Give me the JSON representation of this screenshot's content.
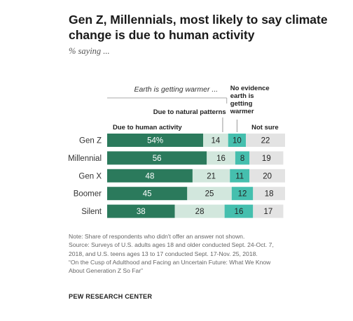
{
  "title": "Gen Z, Millennials, most likely to say climate change is due to human activity",
  "subtitle": "% saying ...",
  "chart_data": {
    "type": "bar",
    "orientation": "horizontal",
    "stacked": true,
    "categories": [
      "Gen Z",
      "Millennial",
      "Gen X",
      "Boomer",
      "Silent"
    ],
    "series": [
      {
        "name": "Due to human activity",
        "values": [
          54,
          56,
          48,
          45,
          38
        ],
        "labels": [
          "54%",
          "56",
          "48",
          "45",
          "38"
        ],
        "color": "#2b7a5c"
      },
      {
        "name": "Due to natural patterns",
        "values": [
          14,
          16,
          21,
          25,
          28
        ],
        "labels": [
          "14",
          "16",
          "21",
          "25",
          "28"
        ],
        "color": "#d2e7dd"
      },
      {
        "name": "No evidence earth is getting warmer",
        "values": [
          10,
          8,
          11,
          12,
          16
        ],
        "labels": [
          "10",
          "8",
          "11",
          "12",
          "16"
        ],
        "color": "#45bfae"
      },
      {
        "name": "Not sure",
        "values": [
          22,
          19,
          20,
          18,
          17
        ],
        "labels": [
          "22",
          "19",
          "20",
          "18",
          "17"
        ],
        "color": "#e3e3e3"
      }
    ],
    "group_label": "Earth is getting warmer ...",
    "legend_placement": "top"
  },
  "notes": [
    "Note: Share of respondents who didn't offer an answer not shown.",
    "Source: Surveys of U.S. adults ages 18 and older conducted Sept. 24-Oct. 7, 2018, and U.S. teens ages 13 to 17 conducted Sept. 17-Nov. 25, 2018.",
    "“On the Cusp of Adulthood and Facing an Uncertain Future: What We Know About Generation Z So Far”"
  ],
  "credit": "PEW RESEARCH CENTER"
}
